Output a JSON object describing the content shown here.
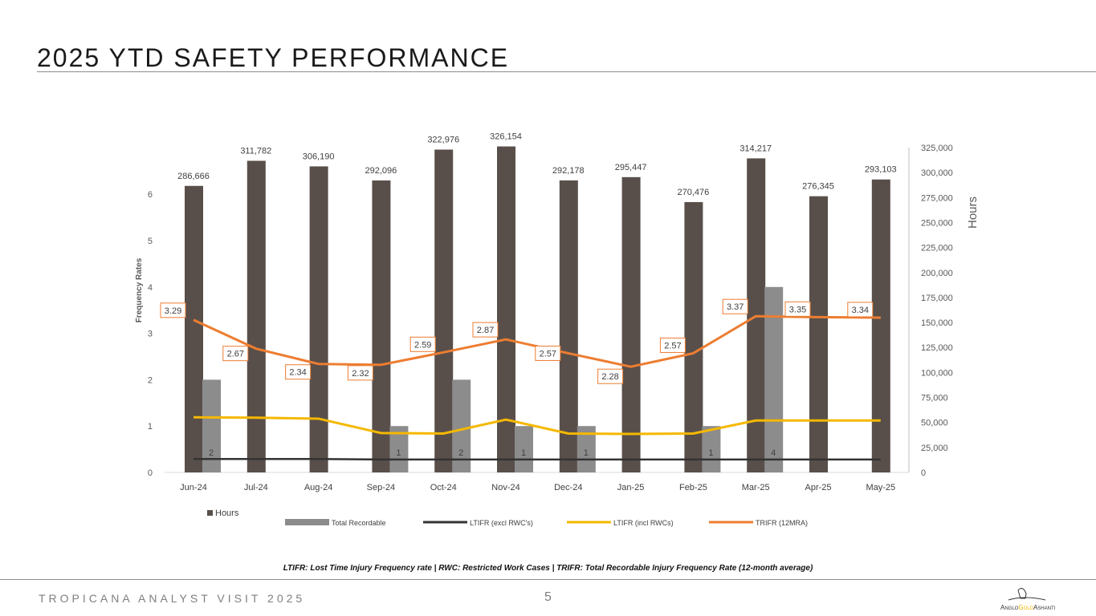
{
  "page": {
    "title": "2025 YTD SAFETY PERFORMANCE",
    "footnote": "LTIFR: Lost Time Injury Frequency rate | RWC: Restricted Work Cases | TRIFR: Total Recordable Injury Frequency Rate (12-month average)",
    "footer": "TROPICANA ANALYST VISIT 2025",
    "page_number": "5",
    "logo_text": "AngloGoldAshanti"
  },
  "chart_data": {
    "type": "bar",
    "categories": [
      "Jun-24",
      "Jul-24",
      "Aug-24",
      "Sep-24",
      "Oct-24",
      "Nov-24",
      "Dec-24",
      "Jan-25",
      "Feb-25",
      "Mar-25",
      "Apr-25",
      "May-25"
    ],
    "ylabel": "Frequency Rates",
    "y2label": "Hours",
    "ylim": [
      0,
      7
    ],
    "yticks": [
      "0",
      "1",
      "2",
      "3",
      "4",
      "5",
      "6"
    ],
    "y2lim": [
      0,
      325000
    ],
    "y2ticks": [
      "0",
      "25,000",
      "50,000",
      "75,000",
      "100,000",
      "125,000",
      "150,000",
      "175,000",
      "200,000",
      "225,000",
      "250,000",
      "275,000",
      "300,000",
      "325,000"
    ],
    "grid": false,
    "legend_position": "bottom",
    "series": [
      {
        "name": "Hours",
        "type": "bar",
        "axis": "right",
        "color": "#594f4a",
        "values": [
          286666,
          311782,
          306190,
          292096,
          322976,
          326154,
          292178,
          295447,
          270476,
          314217,
          276345,
          293103
        ],
        "labels": [
          "286,666",
          "311,782",
          "306,190",
          "292,096",
          "322,976",
          "326,154",
          "292,178",
          "295,447",
          "270,476",
          "314,217",
          "276,345",
          "293,103"
        ]
      },
      {
        "name": "Total Recordable",
        "type": "bar",
        "axis": "left",
        "color": "#8c8c8c",
        "values": [
          2,
          0,
          0,
          1,
          2,
          1,
          1,
          0,
          1,
          4,
          0,
          0
        ],
        "labels": [
          "2",
          "",
          "",
          "1",
          "2",
          "1",
          "1",
          "",
          "1",
          "4",
          "",
          ""
        ]
      },
      {
        "name": "LTIFR (excl RWC's)",
        "type": "line",
        "axis": "left",
        "color": "#333333",
        "values": [
          0.29,
          0.29,
          0.29,
          0.28,
          0.28,
          0.28,
          0.28,
          0.28,
          0.28,
          0.28,
          0.28,
          0.28
        ]
      },
      {
        "name": "LTIFR (incl RWCs)",
        "type": "line",
        "axis": "left",
        "color": "#f5b800",
        "values": [
          1.19,
          1.18,
          1.16,
          0.85,
          0.84,
          1.14,
          0.84,
          0.83,
          0.84,
          1.12,
          1.12,
          1.12
        ]
      },
      {
        "name": "TRIFR (12MRA)",
        "type": "line",
        "axis": "left",
        "color": "#ed7d31",
        "values": [
          3.29,
          2.67,
          2.34,
          2.32,
          2.59,
          2.87,
          2.57,
          2.28,
          2.57,
          3.37,
          3.35,
          3.34
        ],
        "labels": [
          "3.29",
          "2.67",
          "2.34",
          "2.32",
          "2.59",
          "2.87",
          "2.57",
          "2.28",
          "2.57",
          "3.37",
          "3.35",
          "3.34"
        ]
      }
    ]
  }
}
